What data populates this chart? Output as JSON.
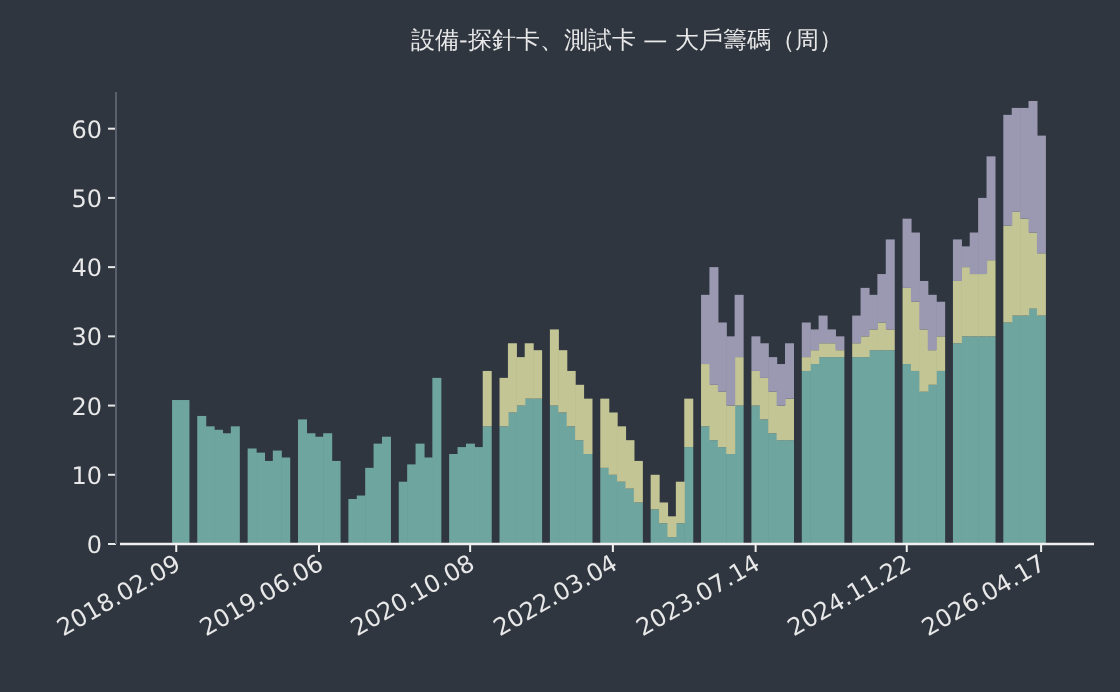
{
  "chart_data": {
    "type": "bar",
    "title": "設備-探針卡、測試卡 — 大戶籌碼（周）",
    "stacked": true,
    "categories": [
      "2018.02.09",
      null,
      null,
      null,
      null,
      null,
      null,
      null,
      null,
      null,
      null,
      null,
      null,
      null,
      null,
      null,
      null,
      "2019.06.06",
      null,
      null,
      null,
      null,
      null,
      null,
      null,
      null,
      null,
      null,
      null,
      null,
      null,
      null,
      null,
      null,
      null,
      "2020.10.08",
      null,
      null,
      null,
      null,
      null,
      null,
      null,
      null,
      null,
      null,
      null,
      null,
      null,
      null,
      null,
      null,
      "2022.03.04",
      null,
      null,
      null,
      null,
      null,
      null,
      null,
      null,
      null,
      null,
      null,
      null,
      null,
      null,
      null,
      null,
      "2023.07.14",
      null,
      null,
      null,
      null,
      null,
      null,
      null,
      null,
      null,
      null,
      null,
      null,
      null,
      null,
      null,
      null,
      null,
      "2024.11.22",
      null,
      null,
      null,
      null,
      null,
      null,
      null,
      null,
      null,
      null,
      null,
      null,
      null,
      null,
      null,
      "2026.04.17"
    ],
    "series": [
      {
        "color": "#6fa59f",
        "values": [
          20.8,
          20.8,
          null,
          18.5,
          17,
          16.5,
          16,
          17,
          null,
          13.8,
          13.2,
          12,
          13.5,
          12.5,
          null,
          18,
          16,
          15.5,
          16,
          12,
          null,
          6.5,
          7,
          11,
          14.5,
          15.5,
          null,
          9,
          11.5,
          14.5,
          12.5,
          24,
          null,
          13,
          14,
          14.5,
          14,
          17,
          null,
          17,
          19,
          20,
          21,
          21,
          null,
          20,
          19,
          17,
          15,
          13,
          null,
          11,
          10,
          9,
          8,
          6,
          null,
          5,
          3,
          1,
          3,
          14,
          null,
          17,
          15,
          14,
          13,
          20,
          null,
          20,
          18,
          16,
          15,
          15,
          null,
          25,
          26,
          27,
          27,
          27,
          null,
          27,
          27,
          28,
          28,
          28,
          null,
          26,
          25,
          22,
          23,
          25,
          null,
          29,
          30,
          30,
          30,
          30,
          null,
          32,
          33,
          33,
          34,
          33
        ]
      },
      {
        "color": "#c3c595",
        "values": [
          0,
          0,
          null,
          0,
          0,
          0,
          0,
          0,
          null,
          0,
          0,
          0,
          0,
          0,
          null,
          0,
          0,
          0,
          0,
          0,
          null,
          0,
          0,
          0,
          0,
          0,
          null,
          0,
          0,
          0,
          0,
          0,
          null,
          0,
          0,
          0,
          0,
          8,
          null,
          7,
          10,
          7,
          8,
          7,
          null,
          11,
          9,
          8,
          8,
          8,
          null,
          10,
          9,
          8,
          7,
          6,
          null,
          5,
          3,
          3,
          6,
          7,
          null,
          9,
          8,
          8,
          7,
          7,
          null,
          5,
          6,
          6,
          5,
          6,
          null,
          2,
          2,
          2,
          2,
          1,
          null,
          2,
          3,
          3,
          4,
          3,
          null,
          11,
          10,
          9,
          5,
          5,
          null,
          9,
          10,
          9,
          9,
          11,
          null,
          14,
          15,
          14,
          11,
          9
        ]
      },
      {
        "color": "#9b99b1",
        "values": [
          0,
          0,
          null,
          0,
          0,
          0,
          0,
          0,
          null,
          0,
          0,
          0,
          0,
          0,
          null,
          0,
          0,
          0,
          0,
          0,
          null,
          0,
          0,
          0,
          0,
          0,
          null,
          0,
          0,
          0,
          0,
          0,
          null,
          0,
          0,
          0,
          0,
          0,
          null,
          0,
          0,
          0,
          0,
          0,
          null,
          0,
          0,
          0,
          0,
          0,
          null,
          0,
          0,
          0,
          0,
          0,
          null,
          0,
          0,
          0,
          0,
          0,
          null,
          10,
          17,
          10,
          10,
          9,
          null,
          5,
          5,
          5,
          6,
          8,
          null,
          5,
          3,
          4,
          2,
          2,
          null,
          4,
          7,
          5,
          7,
          13,
          null,
          10,
          10,
          7,
          8,
          5,
          null,
          6,
          3,
          6,
          11,
          15,
          null,
          16,
          15,
          16,
          19,
          17
        ]
      }
    ],
    "ylim": [
      0,
      65.3
    ],
    "yticks": [
      0,
      10,
      20,
      30,
      40,
      50,
      60
    ],
    "grid": false
  }
}
